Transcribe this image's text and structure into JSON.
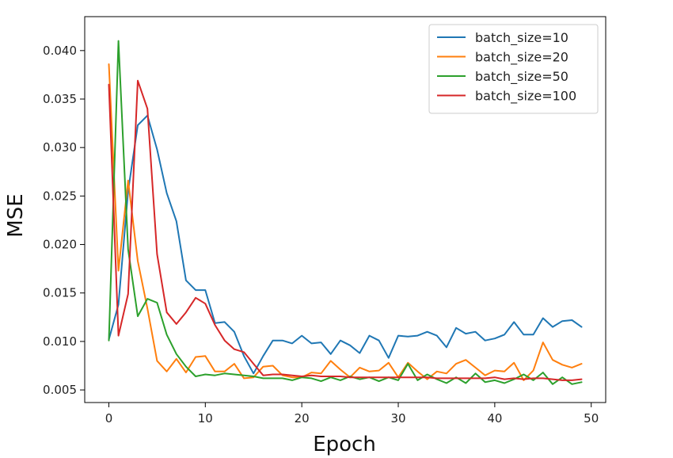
{
  "chart_data": {
    "type": "line",
    "title": "",
    "xlabel": "Epoch",
    "ylabel": "MSE",
    "xlim": [
      -2.5,
      51.5
    ],
    "ylim": [
      0.0037,
      0.0435
    ],
    "xticks": [
      0,
      10,
      20,
      30,
      40,
      50
    ],
    "yticks": [
      0.005,
      0.01,
      0.015,
      0.02,
      0.025,
      0.03,
      0.035,
      0.04
    ],
    "xtick_labels": [
      "0",
      "10",
      "20",
      "30",
      "40",
      "50"
    ],
    "ytick_labels": [
      "0.005",
      "0.010",
      "0.015",
      "0.020",
      "0.025",
      "0.030",
      "0.035",
      "0.040"
    ],
    "grid": false,
    "legend_position": "top-right",
    "x": [
      0,
      1,
      2,
      3,
      4,
      5,
      6,
      7,
      8,
      9,
      10,
      11,
      12,
      13,
      14,
      15,
      16,
      17,
      18,
      19,
      20,
      21,
      22,
      23,
      24,
      25,
      26,
      27,
      28,
      29,
      30,
      31,
      32,
      33,
      34,
      35,
      36,
      37,
      38,
      39,
      40,
      41,
      42,
      43,
      44,
      45,
      46,
      47,
      48,
      49
    ],
    "series": [
      {
        "name": "batch_size=10",
        "color": "#1f77b4",
        "values": [
          0.0102,
          0.0138,
          0.0255,
          0.0323,
          0.0333,
          0.0298,
          0.0253,
          0.0224,
          0.0163,
          0.0153,
          0.0153,
          0.0119,
          0.012,
          0.011,
          0.0085,
          0.0067,
          0.0085,
          0.0101,
          0.0101,
          0.0098,
          0.0106,
          0.0098,
          0.0099,
          0.0087,
          0.0101,
          0.0096,
          0.0088,
          0.0106,
          0.0101,
          0.0083,
          0.0106,
          0.0105,
          0.0106,
          0.011,
          0.0106,
          0.0094,
          0.0114,
          0.0108,
          0.011,
          0.0101,
          0.0103,
          0.0107,
          0.012,
          0.0107,
          0.0107,
          0.0124,
          0.0115,
          0.0121,
          0.0122,
          0.0115
        ]
      },
      {
        "name": "batch_size=20",
        "color": "#ff7f0e",
        "values": [
          0.0386,
          0.0173,
          0.0266,
          0.0183,
          0.0134,
          0.008,
          0.0069,
          0.0082,
          0.0068,
          0.0084,
          0.0085,
          0.0069,
          0.0069,
          0.0077,
          0.0062,
          0.0063,
          0.0074,
          0.0075,
          0.0065,
          0.0063,
          0.0063,
          0.0068,
          0.0067,
          0.008,
          0.0071,
          0.0063,
          0.0073,
          0.0069,
          0.007,
          0.0078,
          0.0063,
          0.0078,
          0.0069,
          0.0061,
          0.0069,
          0.0067,
          0.0077,
          0.0081,
          0.0073,
          0.0065,
          0.007,
          0.0069,
          0.0078,
          0.006,
          0.007,
          0.0099,
          0.0081,
          0.0076,
          0.0073,
          0.0077
        ]
      },
      {
        "name": "batch_size=50",
        "color": "#2ca02c",
        "values": [
          0.0101,
          0.041,
          0.0195,
          0.0126,
          0.0144,
          0.014,
          0.0107,
          0.0087,
          0.0074,
          0.0064,
          0.0066,
          0.0065,
          0.0067,
          0.0066,
          0.0065,
          0.0064,
          0.0062,
          0.0062,
          0.0062,
          0.006,
          0.0063,
          0.0062,
          0.0059,
          0.0063,
          0.006,
          0.0064,
          0.0061,
          0.0063,
          0.0059,
          0.0063,
          0.006,
          0.0077,
          0.006,
          0.0066,
          0.0061,
          0.0057,
          0.0063,
          0.0057,
          0.0067,
          0.0058,
          0.006,
          0.0057,
          0.0061,
          0.0066,
          0.006,
          0.0068,
          0.0056,
          0.0063,
          0.0056,
          0.0058
        ]
      },
      {
        "name": "batch_size=100",
        "color": "#d62728",
        "values": [
          0.0365,
          0.0106,
          0.0149,
          0.0369,
          0.034,
          0.019,
          0.013,
          0.0118,
          0.013,
          0.0145,
          0.0139,
          0.0117,
          0.0101,
          0.0092,
          0.0089,
          0.0077,
          0.0065,
          0.0066,
          0.0066,
          0.0065,
          0.0064,
          0.0065,
          0.0064,
          0.0064,
          0.0064,
          0.0063,
          0.0063,
          0.0063,
          0.0063,
          0.0063,
          0.0063,
          0.0063,
          0.0063,
          0.0063,
          0.0062,
          0.0062,
          0.0062,
          0.0062,
          0.0062,
          0.0062,
          0.0063,
          0.0061,
          0.0062,
          0.0061,
          0.0062,
          0.0062,
          0.0061,
          0.006,
          0.006,
          0.0061
        ]
      }
    ]
  }
}
